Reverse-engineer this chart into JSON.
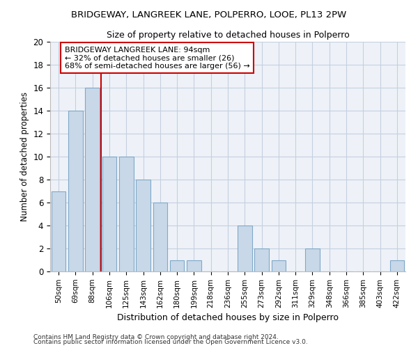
{
  "title_line1": "BRIDGEWAY, LANGREEK LANE, POLPERRO, LOOE, PL13 2PW",
  "title_line2": "Size of property relative to detached houses in Polperro",
  "xlabel": "Distribution of detached houses by size in Polperro",
  "ylabel": "Number of detached properties",
  "categories": [
    "50sqm",
    "69sqm",
    "88sqm",
    "106sqm",
    "125sqm",
    "143sqm",
    "162sqm",
    "180sqm",
    "199sqm",
    "218sqm",
    "236sqm",
    "255sqm",
    "273sqm",
    "292sqm",
    "311sqm",
    "329sqm",
    "348sqm",
    "366sqm",
    "385sqm",
    "403sqm",
    "422sqm"
  ],
  "values": [
    7,
    14,
    16,
    10,
    10,
    8,
    6,
    1,
    1,
    0,
    0,
    4,
    2,
    1,
    0,
    2,
    0,
    0,
    0,
    0,
    1
  ],
  "bar_color": "#c8d8e8",
  "bar_edge_color": "#7fa8c8",
  "property_label": "BRIDGEWAY LANGREEK LANE: 94sqm",
  "annotation_line2": "← 32% of detached houses are smaller (26)",
  "annotation_line3": "68% of semi-detached houses are larger (56) →",
  "vline_color": "#cc0000",
  "annotation_box_edge": "#cc0000",
  "ylim": [
    0,
    20
  ],
  "yticks": [
    0,
    2,
    4,
    6,
    8,
    10,
    12,
    14,
    16,
    18,
    20
  ],
  "footnote1": "Contains HM Land Registry data © Crown copyright and database right 2024.",
  "footnote2": "Contains public sector information licensed under the Open Government Licence v3.0.",
  "bg_color": "#eef2f8",
  "grid_color": "#c5cfe0"
}
